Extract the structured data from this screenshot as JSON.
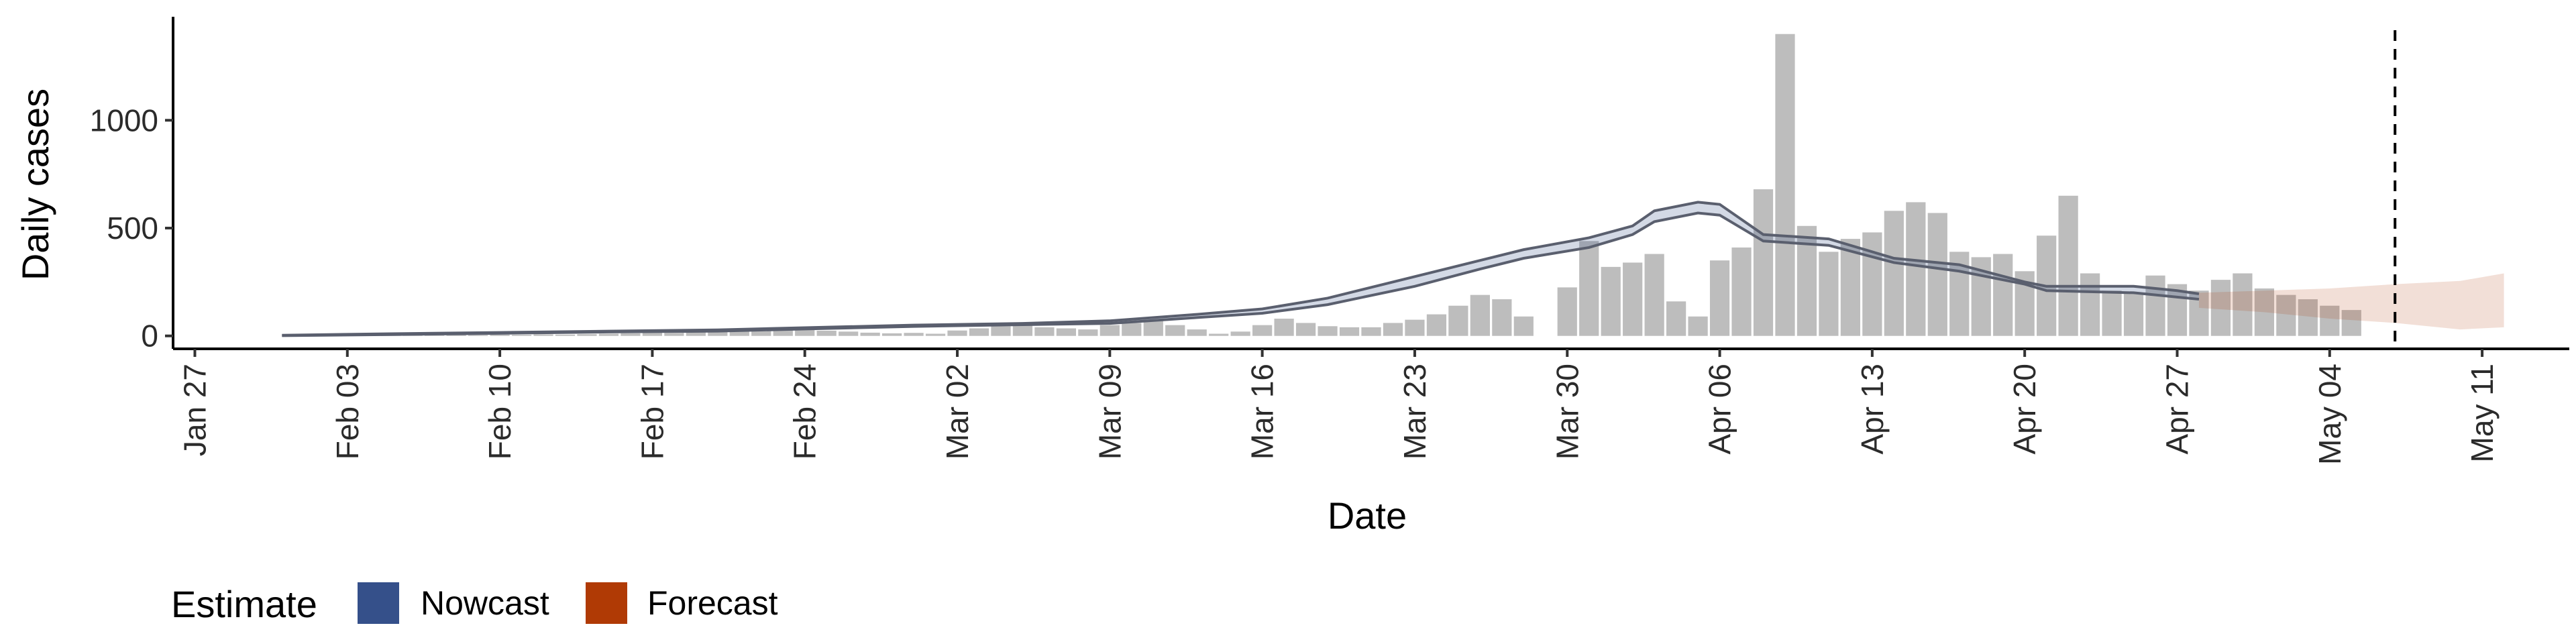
{
  "chart_data": {
    "type": "bar",
    "xlabel": "Date",
    "ylabel": "Daily cases",
    "x_axis": {
      "type": "date",
      "range": [
        "2020-01-26",
        "2020-05-15"
      ],
      "tick_labels": [
        "Jan 27",
        "Feb 03",
        "Feb 10",
        "Feb 17",
        "Feb 24",
        "Mar 02",
        "Mar 09",
        "Mar 16",
        "Mar 23",
        "Mar 30",
        "Apr 06",
        "Apr 13",
        "Apr 20",
        "Apr 27",
        "May 04",
        "May 11"
      ],
      "tick_dates": [
        "2020-01-27",
        "2020-02-03",
        "2020-02-10",
        "2020-02-17",
        "2020-02-24",
        "2020-03-02",
        "2020-03-09",
        "2020-03-16",
        "2020-03-23",
        "2020-03-30",
        "2020-04-06",
        "2020-04-13",
        "2020-04-20",
        "2020-04-27",
        "2020-05-04",
        "2020-05-11"
      ]
    },
    "y_axis": {
      "range": [
        -60,
        1480
      ],
      "tick_labels": [
        "0",
        "500",
        "1000"
      ],
      "tick_values": [
        0,
        500,
        1000
      ]
    },
    "grid": false,
    "legend": {
      "position": "bottom-left",
      "title": "Estimate",
      "items": [
        {
          "label": "Nowcast",
          "color": "#35508a"
        },
        {
          "label": "Forecast",
          "color": "#b03a05"
        }
      ]
    },
    "reference_line": {
      "date": "2020-05-07",
      "style": "dashed"
    },
    "observed_cases": {
      "color": "#bdbdbd",
      "first_date": "2020-02-01",
      "values": [
        1,
        2,
        1,
        3,
        2,
        4,
        3,
        5,
        4,
        6,
        5,
        7,
        6,
        8,
        10,
        12,
        15,
        14,
        18,
        20,
        25,
        22,
        30,
        28,
        24,
        20,
        15,
        12,
        14,
        10,
        25,
        35,
        45,
        50,
        40,
        35,
        30,
        50,
        60,
        70,
        50,
        30,
        10,
        20,
        50,
        80,
        60,
        45,
        40,
        40,
        60,
        75,
        100,
        140,
        190,
        170,
        90,
        0,
        225,
        440,
        320,
        340,
        380,
        160,
        90,
        350,
        410,
        680,
        1400,
        510,
        390,
        450,
        480,
        580,
        620,
        570,
        390,
        365,
        380,
        300,
        465,
        650,
        290,
        210,
        200,
        280,
        240,
        210,
        260,
        290,
        220,
        190,
        170,
        140,
        120
      ]
    },
    "nowcast_estimate": {
      "color": "#35508a",
      "dates": [
        "2020-01-31",
        "2020-02-05",
        "2020-02-10",
        "2020-02-15",
        "2020-02-20",
        "2020-02-24",
        "2020-02-29",
        "2020-03-05",
        "2020-03-09",
        "2020-03-13",
        "2020-03-16",
        "2020-03-19",
        "2020-03-23",
        "2020-03-26",
        "2020-03-28",
        "2020-03-31",
        "2020-04-02",
        "2020-04-03",
        "2020-04-05",
        "2020-04-06",
        "2020-04-08",
        "2020-04-11",
        "2020-04-14",
        "2020-04-17",
        "2020-04-20",
        "2020-04-21",
        "2020-04-25",
        "2020-04-27",
        "2020-04-28"
      ],
      "lower": [
        1,
        6,
        12,
        18,
        22,
        32,
        44,
        52,
        58,
        85,
        105,
        145,
        230,
        310,
        360,
        410,
        470,
        530,
        570,
        560,
        440,
        420,
        340,
        300,
        240,
        210,
        200,
        180,
        170
      ],
      "upper": [
        3,
        10,
        16,
        22,
        28,
        38,
        50,
        58,
        70,
        100,
        125,
        175,
        275,
        350,
        400,
        455,
        510,
        580,
        620,
        610,
        470,
        450,
        360,
        330,
        250,
        230,
        230,
        210,
        195
      ]
    },
    "forecast_estimate": {
      "color": "#b03a05",
      "dates": [
        "2020-04-28",
        "2020-05-01",
        "2020-05-04",
        "2020-05-07",
        "2020-05-10",
        "2020-05-12"
      ],
      "lower": [
        130,
        110,
        80,
        60,
        30,
        40
      ],
      "upper": [
        200,
        210,
        220,
        240,
        255,
        290
      ]
    }
  }
}
